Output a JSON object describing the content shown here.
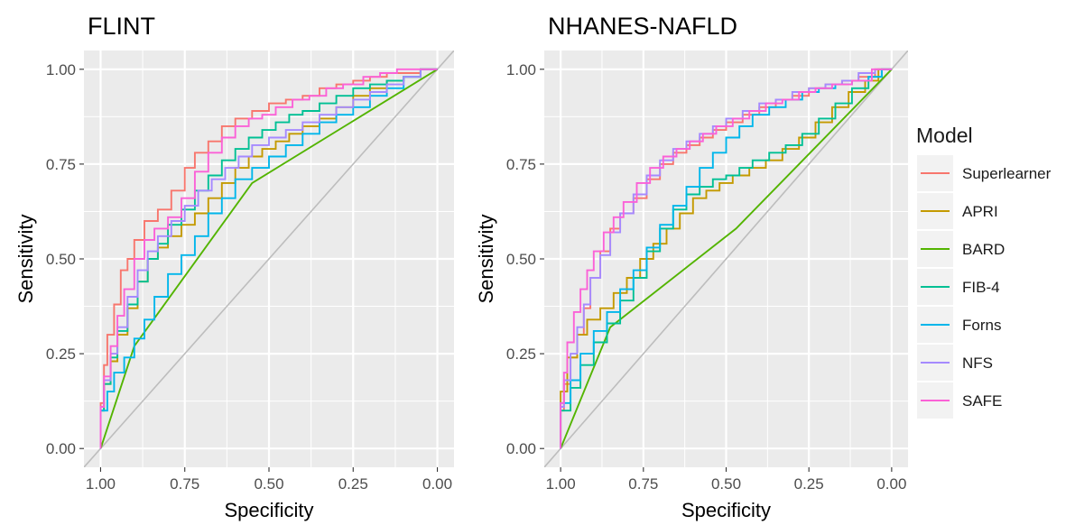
{
  "legend": {
    "title": "Model",
    "entries": [
      {
        "name": "Superlearner",
        "color": "#F8766D"
      },
      {
        "name": "APRI",
        "color": "#C49A00"
      },
      {
        "name": "BARD",
        "color": "#53B400"
      },
      {
        "name": "FIB-4",
        "color": "#00C094"
      },
      {
        "name": "Forns",
        "color": "#00B6EB"
      },
      {
        "name": "NFS",
        "color": "#A58AFF"
      },
      {
        "name": "SAFE",
        "color": "#FB61D7"
      }
    ]
  },
  "chart_data": [
    {
      "type": "line",
      "title": "FLINT",
      "xlabel": "Specificity",
      "ylabel": "Sensitivity",
      "xlim": [
        1.0,
        0.0
      ],
      "ylim": [
        0.0,
        1.0
      ],
      "x_reversed": true,
      "xticks": [
        "1.00",
        "0.75",
        "0.50",
        "0.25",
        "0.00"
      ],
      "yticks": [
        "0.00",
        "0.25",
        "0.50",
        "0.75",
        "1.00"
      ],
      "grid": true,
      "reference_line": "diagonal",
      "series": [
        {
          "name": "Superlearner",
          "color": "#F8766D",
          "specificity": [
            1.0,
            0.99,
            0.98,
            0.96,
            0.94,
            0.92,
            0.9,
            0.87,
            0.83,
            0.79,
            0.75,
            0.72,
            0.68,
            0.64,
            0.6,
            0.55,
            0.5,
            0.45,
            0.4,
            0.35,
            0.3,
            0.25,
            0.2,
            0.15,
            0.1,
            0.05,
            0.02,
            0.0
          ],
          "sensitivity": [
            0.0,
            0.12,
            0.22,
            0.3,
            0.38,
            0.47,
            0.5,
            0.55,
            0.6,
            0.63,
            0.68,
            0.74,
            0.78,
            0.81,
            0.85,
            0.87,
            0.89,
            0.91,
            0.92,
            0.93,
            0.95,
            0.96,
            0.97,
            0.98,
            0.99,
            0.99,
            1.0,
            1.0
          ]
        },
        {
          "name": "APRI",
          "color": "#C49A00",
          "specificity": [
            1.0,
            0.99,
            0.97,
            0.95,
            0.92,
            0.89,
            0.86,
            0.83,
            0.8,
            0.76,
            0.72,
            0.68,
            0.64,
            0.6,
            0.56,
            0.52,
            0.48,
            0.44,
            0.4,
            0.35,
            0.3,
            0.25,
            0.2,
            0.15,
            0.1,
            0.05,
            0.0
          ],
          "sensitivity": [
            0.0,
            0.1,
            0.17,
            0.23,
            0.3,
            0.37,
            0.44,
            0.5,
            0.53,
            0.56,
            0.59,
            0.62,
            0.66,
            0.7,
            0.74,
            0.77,
            0.79,
            0.81,
            0.83,
            0.85,
            0.87,
            0.9,
            0.93,
            0.95,
            0.97,
            0.98,
            1.0
          ]
        },
        {
          "name": "BARD",
          "color": "#53B400",
          "specificity": [
            1.0,
            0.9,
            0.55,
            0.0
          ],
          "sensitivity": [
            0.0,
            0.27,
            0.7,
            1.0
          ]
        },
        {
          "name": "FIB-4",
          "color": "#00C094",
          "specificity": [
            1.0,
            0.99,
            0.97,
            0.95,
            0.92,
            0.89,
            0.86,
            0.83,
            0.8,
            0.76,
            0.72,
            0.68,
            0.64,
            0.6,
            0.56,
            0.52,
            0.48,
            0.44,
            0.4,
            0.35,
            0.3,
            0.25,
            0.2,
            0.15,
            0.1,
            0.05,
            0.0
          ],
          "sensitivity": [
            0.0,
            0.1,
            0.17,
            0.24,
            0.31,
            0.38,
            0.44,
            0.5,
            0.54,
            0.59,
            0.63,
            0.68,
            0.72,
            0.76,
            0.79,
            0.82,
            0.84,
            0.86,
            0.88,
            0.89,
            0.91,
            0.93,
            0.95,
            0.96,
            0.97,
            0.98,
            1.0
          ]
        },
        {
          "name": "Forns",
          "color": "#00B6EB",
          "specificity": [
            1.0,
            0.98,
            0.96,
            0.93,
            0.9,
            0.87,
            0.84,
            0.8,
            0.76,
            0.72,
            0.68,
            0.64,
            0.6,
            0.55,
            0.5,
            0.45,
            0.4,
            0.35,
            0.3,
            0.25,
            0.2,
            0.15,
            0.1,
            0.05,
            0.0
          ],
          "sensitivity": [
            0.0,
            0.1,
            0.15,
            0.2,
            0.24,
            0.29,
            0.34,
            0.4,
            0.46,
            0.51,
            0.56,
            0.62,
            0.66,
            0.71,
            0.74,
            0.77,
            0.8,
            0.83,
            0.86,
            0.88,
            0.9,
            0.93,
            0.95,
            0.98,
            1.0
          ]
        },
        {
          "name": "NFS",
          "color": "#A58AFF",
          "specificity": [
            1.0,
            0.99,
            0.97,
            0.95,
            0.92,
            0.89,
            0.86,
            0.83,
            0.79,
            0.75,
            0.71,
            0.67,
            0.63,
            0.59,
            0.55,
            0.5,
            0.45,
            0.4,
            0.35,
            0.3,
            0.25,
            0.2,
            0.15,
            0.1,
            0.05,
            0.0
          ],
          "sensitivity": [
            0.0,
            0.11,
            0.18,
            0.25,
            0.32,
            0.4,
            0.47,
            0.52,
            0.56,
            0.6,
            0.64,
            0.68,
            0.71,
            0.74,
            0.77,
            0.8,
            0.82,
            0.84,
            0.86,
            0.88,
            0.9,
            0.92,
            0.94,
            0.96,
            0.98,
            1.0
          ]
        },
        {
          "name": "SAFE",
          "color": "#FB61D7",
          "specificity": [
            1.0,
            0.99,
            0.97,
            0.95,
            0.93,
            0.9,
            0.87,
            0.84,
            0.8,
            0.76,
            0.72,
            0.68,
            0.64,
            0.6,
            0.56,
            0.52,
            0.48,
            0.43,
            0.38,
            0.33,
            0.28,
            0.22,
            0.17,
            0.12,
            0.07,
            0.03,
            0.0
          ],
          "sensitivity": [
            0.0,
            0.11,
            0.19,
            0.27,
            0.35,
            0.42,
            0.5,
            0.55,
            0.58,
            0.61,
            0.66,
            0.73,
            0.78,
            0.82,
            0.85,
            0.87,
            0.88,
            0.9,
            0.92,
            0.93,
            0.95,
            0.96,
            0.98,
            0.99,
            1.0,
            1.0,
            1.0
          ]
        }
      ]
    },
    {
      "type": "line",
      "title": "NHANES-NAFLD",
      "xlabel": "Specificity",
      "ylabel": "Sensitivity",
      "xlim": [
        1.0,
        0.0
      ],
      "ylim": [
        0.0,
        1.0
      ],
      "x_reversed": true,
      "xticks": [
        "1.00",
        "0.75",
        "0.50",
        "0.25",
        "0.00"
      ],
      "yticks": [
        "0.00",
        "0.25",
        "0.50",
        "0.75",
        "1.00"
      ],
      "grid": true,
      "reference_line": "diagonal",
      "series": [
        {
          "name": "Superlearner",
          "color": "#F8766D",
          "specificity": [
            1.0,
            0.99,
            0.97,
            0.95,
            0.93,
            0.91,
            0.88,
            0.85,
            0.82,
            0.78,
            0.74,
            0.7,
            0.66,
            0.62,
            0.58,
            0.54,
            0.5,
            0.45,
            0.4,
            0.35,
            0.3,
            0.25,
            0.2,
            0.15,
            0.1,
            0.05,
            0.0
          ],
          "sensitivity": [
            0.0,
            0.1,
            0.17,
            0.24,
            0.3,
            0.37,
            0.45,
            0.52,
            0.58,
            0.62,
            0.66,
            0.71,
            0.75,
            0.78,
            0.8,
            0.82,
            0.84,
            0.86,
            0.88,
            0.9,
            0.92,
            0.93,
            0.95,
            0.96,
            0.97,
            0.98,
            1.0
          ]
        },
        {
          "name": "APRI",
          "color": "#C49A00",
          "specificity": [
            1.0,
            0.98,
            0.95,
            0.92,
            0.88,
            0.84,
            0.8,
            0.76,
            0.72,
            0.68,
            0.64,
            0.6,
            0.56,
            0.52,
            0.48,
            0.43,
            0.38,
            0.33,
            0.28,
            0.23,
            0.18,
            0.13,
            0.08,
            0.04,
            0.0
          ],
          "sensitivity": [
            0.0,
            0.15,
            0.24,
            0.3,
            0.34,
            0.37,
            0.41,
            0.45,
            0.5,
            0.54,
            0.58,
            0.62,
            0.66,
            0.68,
            0.7,
            0.72,
            0.74,
            0.76,
            0.79,
            0.82,
            0.86,
            0.9,
            0.94,
            0.97,
            1.0
          ]
        },
        {
          "name": "BARD",
          "color": "#53B400",
          "specificity": [
            1.0,
            0.85,
            0.47,
            0.0
          ],
          "sensitivity": [
            0.0,
            0.32,
            0.58,
            1.0
          ]
        },
        {
          "name": "FIB-4",
          "color": "#00C094",
          "specificity": [
            1.0,
            0.97,
            0.94,
            0.9,
            0.86,
            0.82,
            0.78,
            0.74,
            0.7,
            0.66,
            0.62,
            0.58,
            0.54,
            0.5,
            0.46,
            0.42,
            0.37,
            0.32,
            0.27,
            0.22,
            0.17,
            0.12,
            0.07,
            0.03,
            0.0
          ],
          "sensitivity": [
            0.0,
            0.1,
            0.16,
            0.22,
            0.28,
            0.33,
            0.39,
            0.45,
            0.52,
            0.58,
            0.63,
            0.67,
            0.69,
            0.71,
            0.72,
            0.74,
            0.76,
            0.78,
            0.8,
            0.83,
            0.87,
            0.91,
            0.95,
            0.98,
            1.0
          ]
        },
        {
          "name": "Forns",
          "color": "#00B6EB",
          "specificity": [
            1.0,
            0.97,
            0.94,
            0.9,
            0.86,
            0.82,
            0.78,
            0.74,
            0.7,
            0.66,
            0.62,
            0.58,
            0.54,
            0.5,
            0.46,
            0.42,
            0.37,
            0.32,
            0.27,
            0.22,
            0.17,
            0.12,
            0.07,
            0.03,
            0.0
          ],
          "sensitivity": [
            0.0,
            0.12,
            0.18,
            0.25,
            0.31,
            0.36,
            0.42,
            0.47,
            0.53,
            0.59,
            0.64,
            0.69,
            0.74,
            0.78,
            0.82,
            0.85,
            0.88,
            0.9,
            0.92,
            0.94,
            0.95,
            0.96,
            0.97,
            0.98,
            1.0
          ]
        },
        {
          "name": "NFS",
          "color": "#A58AFF",
          "specificity": [
            1.0,
            0.99,
            0.97,
            0.95,
            0.93,
            0.91,
            0.88,
            0.85,
            0.82,
            0.78,
            0.74,
            0.7,
            0.66,
            0.62,
            0.58,
            0.54,
            0.5,
            0.45,
            0.4,
            0.35,
            0.3,
            0.25,
            0.2,
            0.15,
            0.1,
            0.05,
            0.0
          ],
          "sensitivity": [
            0.0,
            0.11,
            0.18,
            0.25,
            0.32,
            0.38,
            0.45,
            0.51,
            0.57,
            0.62,
            0.67,
            0.72,
            0.76,
            0.79,
            0.81,
            0.83,
            0.85,
            0.87,
            0.89,
            0.91,
            0.92,
            0.94,
            0.95,
            0.96,
            0.97,
            0.99,
            1.0
          ]
        },
        {
          "name": "SAFE",
          "color": "#FB61D7",
          "specificity": [
            1.0,
            0.99,
            0.98,
            0.96,
            0.94,
            0.92,
            0.9,
            0.87,
            0.84,
            0.81,
            0.77,
            0.73,
            0.69,
            0.65,
            0.61,
            0.57,
            0.53,
            0.48,
            0.43,
            0.38,
            0.33,
            0.28,
            0.23,
            0.18,
            0.12,
            0.06,
            0.0
          ],
          "sensitivity": [
            0.0,
            0.12,
            0.2,
            0.28,
            0.36,
            0.42,
            0.47,
            0.52,
            0.57,
            0.61,
            0.65,
            0.7,
            0.74,
            0.77,
            0.79,
            0.81,
            0.83,
            0.85,
            0.87,
            0.89,
            0.91,
            0.92,
            0.94,
            0.95,
            0.96,
            0.97,
            1.0
          ]
        }
      ]
    }
  ]
}
